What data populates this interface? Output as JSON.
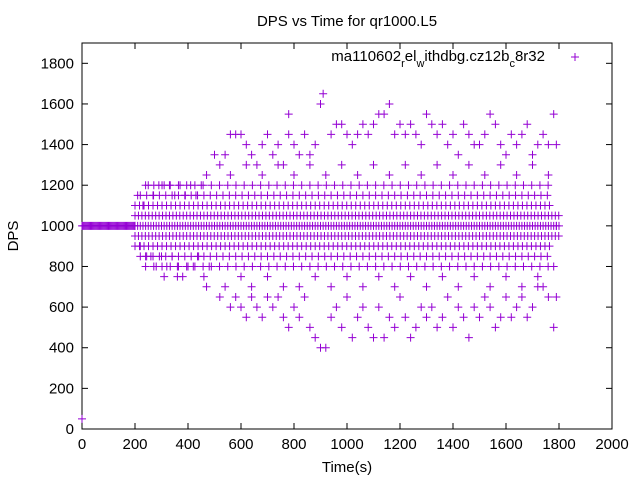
{
  "chart_data": {
    "type": "scatter",
    "title": "DPS vs Time for qr1000.L5",
    "xlabel": "Time(s)",
    "ylabel": "DPS",
    "xlim": [
      0,
      2000
    ],
    "ylim": [
      0,
      1900
    ],
    "x_ticks": [
      "0",
      "200",
      "400",
      "600",
      "800",
      "1000",
      "1200",
      "1400",
      "1600",
      "1800",
      "2000"
    ],
    "y_ticks": [
      "0",
      "200",
      "400",
      "600",
      "800",
      "1000",
      "1200",
      "1400",
      "1600",
      "1800"
    ],
    "grid": false,
    "legend_position": "top-right",
    "marker": "+",
    "series": [
      {
        "name_parts": [
          "ma110602",
          "r",
          "el",
          "w",
          "ithdbg.cz12b",
          "c",
          "8r32"
        ],
        "color": "#9400d3",
        "points": [
          [
            0,
            50
          ],
          [
            210,
            1150
          ],
          [
            230,
            1100
          ],
          [
            250,
            1200
          ],
          [
            270,
            1150
          ],
          [
            290,
            1200
          ],
          [
            310,
            1200
          ],
          [
            330,
            1200
          ],
          [
            350,
            1150
          ],
          [
            370,
            1200
          ],
          [
            390,
            1150
          ],
          [
            410,
            1200
          ],
          [
            430,
            1150
          ],
          [
            450,
            1200
          ],
          [
            470,
            1250
          ],
          [
            220,
            900
          ],
          [
            240,
            850
          ],
          [
            260,
            850
          ],
          [
            280,
            800
          ],
          [
            300,
            850
          ],
          [
            320,
            800
          ],
          [
            340,
            850
          ],
          [
            360,
            800
          ],
          [
            380,
            750
          ],
          [
            400,
            800
          ],
          [
            420,
            800
          ],
          [
            440,
            850
          ],
          [
            460,
            750
          ],
          [
            480,
            800
          ],
          [
            310,
            750
          ],
          [
            360,
            750
          ],
          [
            470,
            700
          ],
          [
            500,
            1350
          ],
          [
            520,
            1300
          ],
          [
            540,
            1350
          ],
          [
            560,
            1450
          ],
          [
            580,
            1450
          ],
          [
            600,
            1450
          ],
          [
            620,
            1400
          ],
          [
            640,
            1350
          ],
          [
            660,
            1300
          ],
          [
            680,
            1400
          ],
          [
            700,
            1450
          ],
          [
            720,
            1350
          ],
          [
            740,
            1400
          ],
          [
            760,
            1300
          ],
          [
            780,
            1450
          ],
          [
            800,
            1400
          ],
          [
            820,
            1350
          ],
          [
            840,
            1450
          ],
          [
            860,
            1350
          ],
          [
            880,
            1400
          ],
          [
            780,
            1550
          ],
          [
            900,
            1600
          ],
          [
            910,
            1650
          ],
          [
            940,
            1450
          ],
          [
            960,
            1500
          ],
          [
            980,
            1500
          ],
          [
            1000,
            1450
          ],
          [
            1020,
            1400
          ],
          [
            1040,
            1450
          ],
          [
            1060,
            1500
          ],
          [
            1080,
            1450
          ],
          [
            1100,
            1500
          ],
          [
            1120,
            1550
          ],
          [
            1140,
            1550
          ],
          [
            1160,
            1600
          ],
          [
            1180,
            1450
          ],
          [
            1200,
            1500
          ],
          [
            1220,
            1450
          ],
          [
            1240,
            1500
          ],
          [
            1260,
            1450
          ],
          [
            1280,
            1400
          ],
          [
            1300,
            1550
          ],
          [
            1320,
            1500
          ],
          [
            1340,
            1450
          ],
          [
            1360,
            1500
          ],
          [
            1380,
            1400
          ],
          [
            1400,
            1450
          ],
          [
            1420,
            1350
          ],
          [
            1440,
            1500
          ],
          [
            1460,
            1450
          ],
          [
            1480,
            1400
          ],
          [
            1500,
            1400
          ],
          [
            1520,
            1450
          ],
          [
            1540,
            1550
          ],
          [
            1560,
            1500
          ],
          [
            1580,
            1400
          ],
          [
            1600,
            1350
          ],
          [
            1620,
            1450
          ],
          [
            1640,
            1400
          ],
          [
            1660,
            1450
          ],
          [
            1680,
            1500
          ],
          [
            1700,
            1350
          ],
          [
            1720,
            1400
          ],
          [
            1740,
            1450
          ],
          [
            1760,
            1400
          ],
          [
            1780,
            1550
          ],
          [
            1790,
            1400
          ],
          [
            520,
            650
          ],
          [
            540,
            700
          ],
          [
            560,
            600
          ],
          [
            580,
            650
          ],
          [
            600,
            600
          ],
          [
            620,
            550
          ],
          [
            640,
            650
          ],
          [
            660,
            600
          ],
          [
            680,
            550
          ],
          [
            700,
            650
          ],
          [
            720,
            600
          ],
          [
            740,
            650
          ],
          [
            760,
            550
          ],
          [
            780,
            500
          ],
          [
            800,
            600
          ],
          [
            820,
            550
          ],
          [
            840,
            650
          ],
          [
            860,
            500
          ],
          [
            880,
            450
          ],
          [
            900,
            400
          ],
          [
            920,
            400
          ],
          [
            940,
            550
          ],
          [
            960,
            600
          ],
          [
            980,
            500
          ],
          [
            1000,
            650
          ],
          [
            1020,
            450
          ],
          [
            1040,
            550
          ],
          [
            1060,
            600
          ],
          [
            1080,
            500
          ],
          [
            1100,
            450
          ],
          [
            1120,
            600
          ],
          [
            1140,
            450
          ],
          [
            1160,
            550
          ],
          [
            1180,
            500
          ],
          [
            1200,
            650
          ],
          [
            1220,
            550
          ],
          [
            1240,
            450
          ],
          [
            1260,
            500
          ],
          [
            1280,
            600
          ],
          [
            1300,
            550
          ],
          [
            1320,
            600
          ],
          [
            1340,
            500
          ],
          [
            1360,
            550
          ],
          [
            1380,
            650
          ],
          [
            1400,
            500
          ],
          [
            1420,
            600
          ],
          [
            1440,
            550
          ],
          [
            1460,
            450
          ],
          [
            1480,
            600
          ],
          [
            1500,
            550
          ],
          [
            1520,
            650
          ],
          [
            1540,
            600
          ],
          [
            1560,
            500
          ],
          [
            1580,
            550
          ],
          [
            1600,
            650
          ],
          [
            1620,
            550
          ],
          [
            1640,
            600
          ],
          [
            1660,
            650
          ],
          [
            1680,
            550
          ],
          [
            1700,
            600
          ],
          [
            1720,
            700
          ],
          [
            1740,
            700
          ],
          [
            1760,
            650
          ],
          [
            1780,
            500
          ],
          [
            1790,
            650
          ],
          [
            600,
            750
          ],
          [
            640,
            700
          ],
          [
            700,
            750
          ],
          [
            760,
            700
          ],
          [
            820,
            700
          ],
          [
            880,
            750
          ],
          [
            940,
            700
          ],
          [
            1000,
            750
          ],
          [
            1060,
            700
          ],
          [
            1120,
            750
          ],
          [
            1180,
            700
          ],
          [
            1240,
            750
          ],
          [
            1300,
            700
          ],
          [
            1360,
            750
          ],
          [
            1420,
            700
          ],
          [
            1480,
            750
          ],
          [
            1540,
            700
          ],
          [
            1600,
            750
          ],
          [
            1660,
            700
          ],
          [
            1720,
            750
          ],
          [
            1780,
            800
          ],
          [
            560,
            1250
          ],
          [
            620,
            1300
          ],
          [
            680,
            1250
          ],
          [
            740,
            1300
          ],
          [
            800,
            1250
          ],
          [
            860,
            1300
          ],
          [
            920,
            1250
          ],
          [
            980,
            1300
          ],
          [
            1040,
            1250
          ],
          [
            1100,
            1300
          ],
          [
            1160,
            1250
          ],
          [
            1220,
            1300
          ],
          [
            1280,
            1250
          ],
          [
            1340,
            1300
          ],
          [
            1400,
            1250
          ],
          [
            1460,
            1300
          ],
          [
            1520,
            1250
          ],
          [
            1580,
            1300
          ],
          [
            1640,
            1250
          ],
          [
            1700,
            1300
          ],
          [
            1760,
            1250
          ],
          [
            1790,
            1000
          ]
        ]
      }
    ],
    "dense_bands": [
      {
        "x_range": [
          0,
          200
        ],
        "y": 1000,
        "step": 4,
        "note": "solid run of points at 1000"
      },
      {
        "x_range": [
          200,
          1800
        ],
        "y": 1000,
        "step": 10
      },
      {
        "x_range": [
          200,
          1800
        ],
        "y": 950,
        "step": 13
      },
      {
        "x_range": [
          200,
          1800
        ],
        "y": 1050,
        "step": 13
      },
      {
        "x_range": [
          200,
          1780
        ],
        "y": 900,
        "step": 17
      },
      {
        "x_range": [
          200,
          1780
        ],
        "y": 1100,
        "step": 17
      },
      {
        "x_range": [
          220,
          1760
        ],
        "y": 850,
        "step": 24
      },
      {
        "x_range": [
          220,
          1760
        ],
        "y": 1150,
        "step": 24
      },
      {
        "x_range": [
          240,
          1760
        ],
        "y": 800,
        "step": 31
      },
      {
        "x_range": [
          240,
          1760
        ],
        "y": 1200,
        "step": 31
      }
    ]
  }
}
